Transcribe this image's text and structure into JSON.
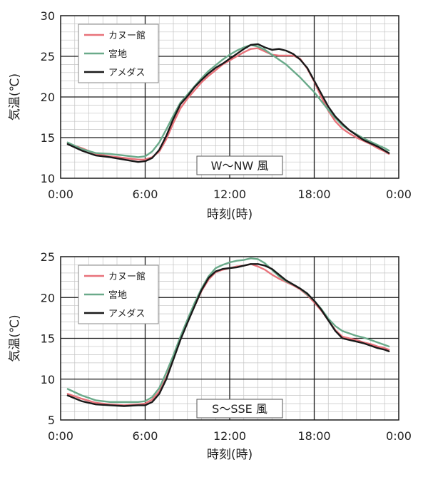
{
  "chart_data": [
    {
      "type": "line",
      "xlabel": "時刻(時)",
      "ylabel": "気温(℃)",
      "xlim": [
        0,
        24
      ],
      "ylim": [
        10,
        30
      ],
      "x_ticks": [
        "0:00",
        "6:00",
        "12:00",
        "18:00",
        "0:00"
      ],
      "y_ticks": [
        10,
        15,
        20,
        25,
        30
      ],
      "grid": true,
      "legend": "top-left",
      "annotation": "W～NW 風",
      "series": [
        {
          "name": "カヌー館",
          "color": "#e8727a",
          "points": [
            [
              0.5,
              14.3
            ],
            [
              1.5,
              13.7
            ],
            [
              2.5,
              13.0
            ],
            [
              3.5,
              12.7
            ],
            [
              4.5,
              12.5
            ],
            [
              5.5,
              12.3
            ],
            [
              6.0,
              12.3
            ],
            [
              6.5,
              12.6
            ],
            [
              7.0,
              13.3
            ],
            [
              7.5,
              14.8
            ],
            [
              8.0,
              16.8
            ],
            [
              8.5,
              18.6
            ],
            [
              9.0,
              19.8
            ],
            [
              9.5,
              20.8
            ],
            [
              10.0,
              21.8
            ],
            [
              10.5,
              22.6
            ],
            [
              11.0,
              23.3
            ],
            [
              11.5,
              24.0
            ],
            [
              12.0,
              24.5
            ],
            [
              12.5,
              25.0
            ],
            [
              13.0,
              25.5
            ],
            [
              13.5,
              25.9
            ],
            [
              14.0,
              26.0
            ],
            [
              14.5,
              25.6
            ],
            [
              15.0,
              25.2
            ],
            [
              15.5,
              25.1
            ],
            [
              16.0,
              25.1
            ],
            [
              16.5,
              25.1
            ],
            [
              17.0,
              24.7
            ],
            [
              17.5,
              23.5
            ],
            [
              18.0,
              21.9
            ],
            [
              18.5,
              20.0
            ],
            [
              19.0,
              18.3
            ],
            [
              19.5,
              17.0
            ],
            [
              20.0,
              16.1
            ],
            [
              20.5,
              15.5
            ],
            [
              21.0,
              15.0
            ],
            [
              21.5,
              14.6
            ],
            [
              22.0,
              14.2
            ],
            [
              22.5,
              13.7
            ],
            [
              23.0,
              13.3
            ],
            [
              23.3,
              13.0
            ]
          ]
        },
        {
          "name": "宮地",
          "color": "#6aaa8a",
          "points": [
            [
              0.5,
              14.4
            ],
            [
              1.5,
              13.6
            ],
            [
              2.5,
              13.1
            ],
            [
              3.5,
              13.0
            ],
            [
              4.5,
              12.8
            ],
            [
              5.5,
              12.6
            ],
            [
              6.0,
              12.7
            ],
            [
              6.5,
              13.3
            ],
            [
              7.0,
              14.4
            ],
            [
              7.5,
              16.0
            ],
            [
              8.0,
              17.7
            ],
            [
              8.5,
              19.3
            ],
            [
              9.0,
              20.3
            ],
            [
              9.5,
              21.3
            ],
            [
              10.0,
              22.3
            ],
            [
              10.5,
              23.2
            ],
            [
              11.0,
              23.9
            ],
            [
              11.5,
              24.6
            ],
            [
              12.0,
              25.2
            ],
            [
              12.5,
              25.7
            ],
            [
              13.0,
              26.1
            ],
            [
              13.5,
              26.4
            ],
            [
              14.0,
              26.2
            ],
            [
              14.5,
              25.8
            ],
            [
              15.0,
              25.2
            ],
            [
              15.5,
              24.6
            ],
            [
              16.0,
              24.0
            ],
            [
              16.5,
              23.2
            ],
            [
              17.0,
              22.4
            ],
            [
              17.5,
              21.5
            ],
            [
              18.0,
              20.6
            ],
            [
              18.5,
              19.5
            ],
            [
              19.0,
              18.4
            ],
            [
              19.5,
              17.4
            ],
            [
              20.0,
              16.5
            ],
            [
              20.5,
              15.9
            ],
            [
              21.0,
              15.4
            ],
            [
              21.5,
              14.9
            ],
            [
              22.0,
              14.5
            ],
            [
              22.5,
              14.1
            ],
            [
              23.0,
              13.7
            ],
            [
              23.3,
              13.4
            ]
          ]
        },
        {
          "name": "アメダス",
          "color": "#1a1a1a",
          "points": [
            [
              0.5,
              14.2
            ],
            [
              1.5,
              13.4
            ],
            [
              2.5,
              12.8
            ],
            [
              3.5,
              12.6
            ],
            [
              4.5,
              12.3
            ],
            [
              5.5,
              12.0
            ],
            [
              6.0,
              12.1
            ],
            [
              6.5,
              12.5
            ],
            [
              7.0,
              13.5
            ],
            [
              7.5,
              15.2
            ],
            [
              8.0,
              17.3
            ],
            [
              8.5,
              19.1
            ],
            [
              9.0,
              20.1
            ],
            [
              9.5,
              21.2
            ],
            [
              10.0,
              22.1
            ],
            [
              10.5,
              22.9
            ],
            [
              11.0,
              23.6
            ],
            [
              11.5,
              24.1
            ],
            [
              12.0,
              24.7
            ],
            [
              12.5,
              25.3
            ],
            [
              13.0,
              25.9
            ],
            [
              13.5,
              26.4
            ],
            [
              14.0,
              26.5
            ],
            [
              14.5,
              26.1
            ],
            [
              15.0,
              25.8
            ],
            [
              15.5,
              25.9
            ],
            [
              16.0,
              25.7
            ],
            [
              16.5,
              25.3
            ],
            [
              17.0,
              24.6
            ],
            [
              17.5,
              23.6
            ],
            [
              18.0,
              22.0
            ],
            [
              18.5,
              20.4
            ],
            [
              19.0,
              18.8
            ],
            [
              19.5,
              17.6
            ],
            [
              20.0,
              16.7
            ],
            [
              20.5,
              15.9
            ],
            [
              21.0,
              15.3
            ],
            [
              21.5,
              14.7
            ],
            [
              22.0,
              14.3
            ],
            [
              22.5,
              13.9
            ],
            [
              23.0,
              13.4
            ],
            [
              23.3,
              13.1
            ]
          ]
        }
      ]
    },
    {
      "type": "line",
      "xlabel": "時刻(時)",
      "ylabel": "気温(℃)",
      "xlim": [
        0,
        24
      ],
      "ylim": [
        5,
        25
      ],
      "x_ticks": [
        "0:00",
        "6:00",
        "12:00",
        "18:00",
        "0:00"
      ],
      "y_ticks": [
        5,
        10,
        15,
        20,
        25
      ],
      "grid": true,
      "legend": "top-left",
      "annotation": "S～SSE 風",
      "series": [
        {
          "name": "カヌー館",
          "color": "#e8727a",
          "points": [
            [
              0.5,
              8.2
            ],
            [
              1.5,
              7.6
            ],
            [
              2.5,
              7.1
            ],
            [
              3.5,
              6.9
            ],
            [
              4.5,
              6.8
            ],
            [
              5.5,
              6.9
            ],
            [
              6.0,
              7.0
            ],
            [
              6.5,
              7.5
            ],
            [
              7.0,
              8.5
            ],
            [
              7.5,
              10.2
            ],
            [
              8.0,
              12.5
            ],
            [
              8.5,
              14.9
            ],
            [
              9.0,
              17.0
            ],
            [
              9.5,
              18.9
            ],
            [
              10.0,
              20.8
            ],
            [
              10.5,
              22.2
            ],
            [
              11.0,
              23.1
            ],
            [
              11.5,
              23.4
            ],
            [
              12.0,
              23.6
            ],
            [
              12.5,
              23.8
            ],
            [
              13.0,
              23.9
            ],
            [
              13.5,
              24.1
            ],
            [
              14.0,
              23.8
            ],
            [
              14.5,
              23.4
            ],
            [
              15.0,
              22.8
            ],
            [
              15.5,
              22.3
            ],
            [
              16.0,
              21.9
            ],
            [
              16.5,
              21.5
            ],
            [
              17.0,
              21.0
            ],
            [
              17.5,
              20.3
            ],
            [
              18.0,
              19.4
            ],
            [
              18.5,
              18.4
            ],
            [
              19.0,
              17.2
            ],
            [
              19.5,
              16.0
            ],
            [
              20.0,
              15.2
            ],
            [
              20.5,
              15.0
            ],
            [
              21.0,
              14.8
            ],
            [
              21.5,
              14.5
            ],
            [
              22.0,
              14.3
            ],
            [
              22.5,
              14.0
            ],
            [
              23.0,
              13.8
            ],
            [
              23.3,
              13.6
            ]
          ]
        },
        {
          "name": "宮地",
          "color": "#6aaa8a",
          "points": [
            [
              0.5,
              8.8
            ],
            [
              1.5,
              8.0
            ],
            [
              2.5,
              7.4
            ],
            [
              3.5,
              7.2
            ],
            [
              4.5,
              7.2
            ],
            [
              5.5,
              7.2
            ],
            [
              6.0,
              7.3
            ],
            [
              6.5,
              7.8
            ],
            [
              7.0,
              8.9
            ],
            [
              7.5,
              10.8
            ],
            [
              8.0,
              12.9
            ],
            [
              8.5,
              15.2
            ],
            [
              9.0,
              17.3
            ],
            [
              9.5,
              19.3
            ],
            [
              10.0,
              21.1
            ],
            [
              10.5,
              22.6
            ],
            [
              11.0,
              23.6
            ],
            [
              11.5,
              24.0
            ],
            [
              12.0,
              24.3
            ],
            [
              12.5,
              24.5
            ],
            [
              13.0,
              24.6
            ],
            [
              13.5,
              24.8
            ],
            [
              14.0,
              24.7
            ],
            [
              14.5,
              24.2
            ],
            [
              15.0,
              23.4
            ],
            [
              15.5,
              22.6
            ],
            [
              16.0,
              22.0
            ],
            [
              16.5,
              21.6
            ],
            [
              17.0,
              21.1
            ],
            [
              17.5,
              20.4
            ],
            [
              18.0,
              19.6
            ],
            [
              18.5,
              18.6
            ],
            [
              19.0,
              17.4
            ],
            [
              19.5,
              16.5
            ],
            [
              20.0,
              15.9
            ],
            [
              20.5,
              15.6
            ],
            [
              21.0,
              15.3
            ],
            [
              21.5,
              15.1
            ],
            [
              22.0,
              14.8
            ],
            [
              22.5,
              14.5
            ],
            [
              23.0,
              14.2
            ],
            [
              23.3,
              14.0
            ]
          ]
        },
        {
          "name": "アメダス",
          "color": "#1a1a1a",
          "points": [
            [
              0.5,
              8.0
            ],
            [
              1.5,
              7.3
            ],
            [
              2.5,
              6.9
            ],
            [
              3.5,
              6.8
            ],
            [
              4.5,
              6.7
            ],
            [
              5.5,
              6.8
            ],
            [
              6.0,
              6.8
            ],
            [
              6.5,
              7.2
            ],
            [
              7.0,
              8.2
            ],
            [
              7.5,
              10.0
            ],
            [
              8.0,
              12.4
            ],
            [
              8.5,
              14.8
            ],
            [
              9.0,
              16.9
            ],
            [
              9.5,
              18.9
            ],
            [
              10.0,
              20.9
            ],
            [
              10.5,
              22.4
            ],
            [
              11.0,
              23.2
            ],
            [
              11.5,
              23.5
            ],
            [
              12.0,
              23.6
            ],
            [
              12.5,
              23.7
            ],
            [
              13.0,
              23.9
            ],
            [
              13.5,
              24.1
            ],
            [
              14.0,
              24.1
            ],
            [
              14.5,
              23.9
            ],
            [
              15.0,
              23.5
            ],
            [
              15.5,
              22.8
            ],
            [
              16.0,
              22.1
            ],
            [
              16.5,
              21.6
            ],
            [
              17.0,
              21.1
            ],
            [
              17.5,
              20.5
            ],
            [
              18.0,
              19.6
            ],
            [
              18.5,
              18.5
            ],
            [
              19.0,
              17.2
            ],
            [
              19.5,
              15.9
            ],
            [
              20.0,
              15.0
            ],
            [
              20.5,
              14.8
            ],
            [
              21.0,
              14.6
            ],
            [
              21.5,
              14.4
            ],
            [
              22.0,
              14.1
            ],
            [
              22.5,
              13.8
            ],
            [
              23.0,
              13.6
            ],
            [
              23.3,
              13.4
            ]
          ]
        }
      ]
    }
  ]
}
